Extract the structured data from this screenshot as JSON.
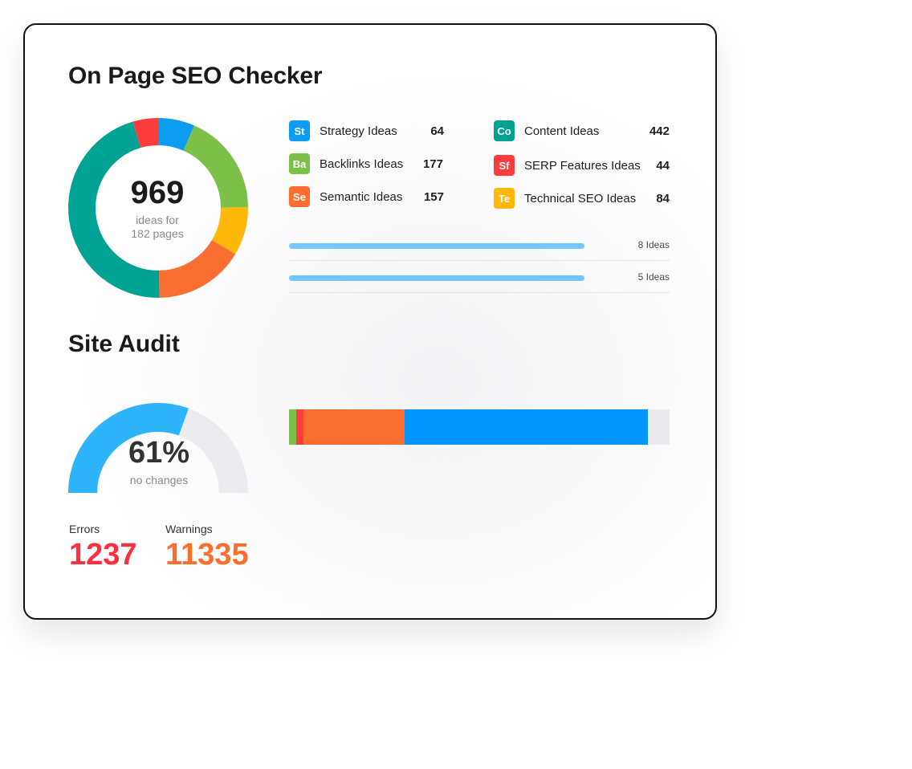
{
  "seo": {
    "title": "On Page SEO Checker",
    "total": "969",
    "sub1": "ideas for",
    "sub2": "182 pages",
    "legend": [
      {
        "abbr": "St",
        "label": "Strategy Ideas",
        "value": "64",
        "color": "#0c9df0"
      },
      {
        "abbr": "Ba",
        "label": "Backlinks Ideas",
        "value": "177",
        "color": "#7dc048"
      },
      {
        "abbr": "Se",
        "label": "Semantic Ideas",
        "value": "157",
        "color": "#fb6e32"
      },
      {
        "abbr": "Co",
        "label": "Content Ideas",
        "value": "442",
        "color": "#00a393"
      },
      {
        "abbr": "Sf",
        "label": "SERP Features Ideas",
        "value": "44",
        "color": "#ff3c3c"
      },
      {
        "abbr": "Te",
        "label": "Technical SEO Ideas",
        "value": "84",
        "color": "#ffb70a"
      }
    ],
    "progress": [
      {
        "label": "8 Ideas",
        "fill": 1.0
      },
      {
        "label": "5 Ideas",
        "fill": 1.0
      }
    ]
  },
  "audit": {
    "title": "Site Audit",
    "percent": "61%",
    "percent_value": 61,
    "sub": "no changes",
    "gauge_color": "#2db4fb",
    "gauge_track": "#ebebf0",
    "stack": [
      {
        "value": 2,
        "color": "#7dc048"
      },
      {
        "value": 1.7,
        "color": "#ff3c3c"
      },
      {
        "value": 26.6,
        "color": "#fb6e32"
      },
      {
        "value": 64,
        "color": "#0496ff"
      }
    ],
    "errors_label": "Errors",
    "errors_value": "1237",
    "errors_color": "#ff2e3f",
    "warnings_label": "Warnings",
    "warnings_value": "11335",
    "warnings_color": "#ff6d2d"
  }
}
